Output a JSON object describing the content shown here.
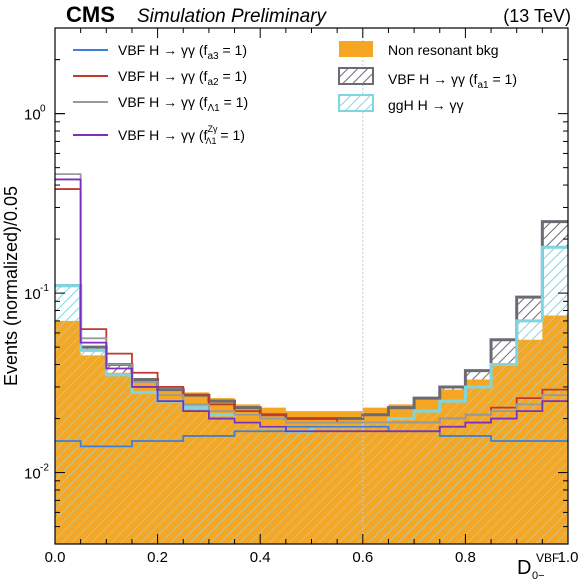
{
  "header": {
    "cms": "CMS",
    "status": "Simulation Preliminary",
    "energy": "(13 TeV)"
  },
  "chart_data": {
    "type": "step-histogram",
    "ylabel": "Events (normalized)/0.05",
    "xlabel": {
      "main": "D",
      "sub": "0−",
      "sup": "VBF"
    },
    "xlim": [
      0,
      1
    ],
    "ylim": [
      0.004,
      3.0
    ],
    "yscale": "log",
    "x_ticks": [
      "0.0",
      "0.2",
      "0.4",
      "0.6",
      "0.8",
      "1.0"
    ],
    "y_ticks": [
      {
        "value": 1,
        "base": "10",
        "exp": "0"
      },
      {
        "value": 0.1,
        "base": "10",
        "exp": "-1"
      },
      {
        "value": 0.01,
        "base": "10",
        "exp": "-2"
      }
    ],
    "reference_line_x": 0.6,
    "bin_edges": [
      0,
      0.05,
      0.1,
      0.15,
      0.2,
      0.25,
      0.3,
      0.35,
      0.4,
      0.45,
      0.5,
      0.55,
      0.6,
      0.65,
      0.7,
      0.75,
      0.8,
      0.85,
      0.9,
      0.95,
      1.0
    ],
    "filled": [
      {
        "name": "Non resonant bkg",
        "color": "#f5a623",
        "style": "solid",
        "values": [
          0.07,
          0.045,
          0.036,
          0.032,
          0.029,
          0.028,
          0.026,
          0.024,
          0.023,
          0.022,
          0.022,
          0.022,
          0.023,
          0.024,
          0.026,
          0.029,
          0.033,
          0.04,
          0.055,
          0.075
        ]
      },
      {
        "name": "VBF H → γγ  (f",
        "sub": "a1",
        "tail": " = 1)",
        "color": "#6b6b73",
        "style": "hatch",
        "values": [
          0.11,
          0.05,
          0.04,
          0.033,
          0.029,
          0.027,
          0.025,
          0.023,
          0.021,
          0.02,
          0.02,
          0.02,
          0.021,
          0.023,
          0.026,
          0.03,
          0.037,
          0.055,
          0.095,
          0.25
        ]
      },
      {
        "name": "ggH H → γγ",
        "color": "#7fd6e0",
        "style": "hatch",
        "values": [
          0.11,
          0.048,
          0.035,
          0.028,
          0.025,
          0.023,
          0.021,
          0.019,
          0.018,
          0.017,
          0.018,
          0.018,
          0.019,
          0.02,
          0.022,
          0.025,
          0.03,
          0.04,
          0.07,
          0.18
        ]
      }
    ],
    "series": [
      {
        "name": "VBF H → γγ (f",
        "sub": "a3",
        "tail": " = 1)",
        "color": "#3d7fd9",
        "values": [
          0.015,
          0.014,
          0.014,
          0.015,
          0.015,
          0.016,
          0.016,
          0.017,
          0.017,
          0.018,
          0.018,
          0.018,
          0.018,
          0.017,
          0.017,
          0.016,
          0.016,
          0.015,
          0.015,
          0.015
        ]
      },
      {
        "name": "VBF H → γγ (f",
        "sub": "a2",
        "tail": " = 1)",
        "color": "#c0392b",
        "values": [
          0.38,
          0.063,
          0.046,
          0.036,
          0.03,
          0.027,
          0.024,
          0.022,
          0.021,
          0.02,
          0.02,
          0.019,
          0.019,
          0.019,
          0.019,
          0.02,
          0.021,
          0.023,
          0.026,
          0.029
        ]
      },
      {
        "name": "VBF H → γγ (f",
        "sub": "Λ1",
        "tail": " = 1)",
        "color": "#9a9a9a",
        "values": [
          0.46,
          0.056,
          0.04,
          0.032,
          0.027,
          0.024,
          0.022,
          0.021,
          0.02,
          0.019,
          0.019,
          0.019,
          0.019,
          0.019,
          0.019,
          0.02,
          0.021,
          0.022,
          0.024,
          0.027
        ]
      },
      {
        "name": "VBF H → γγ (f",
        "sub": "Λ1",
        "sup": "Zγ",
        "tail": " = 1)",
        "color": "#7b2fbe",
        "values": [
          0.43,
          0.053,
          0.038,
          0.03,
          0.025,
          0.022,
          0.02,
          0.019,
          0.018,
          0.017,
          0.017,
          0.017,
          0.017,
          0.017,
          0.017,
          0.018,
          0.019,
          0.02,
          0.022,
          0.025
        ]
      }
    ],
    "legend_placement": "top (two columns)"
  }
}
